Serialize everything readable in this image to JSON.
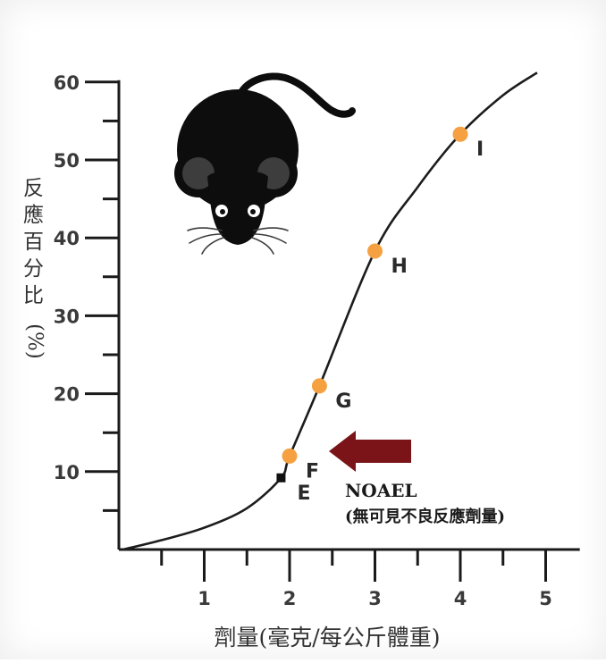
{
  "chart_data": {
    "type": "line",
    "xlabel": "劑量(毫克/每公斤體重)",
    "ylabel": "反應百分比(%)",
    "x_ticks": [
      1,
      2,
      3,
      4,
      5
    ],
    "y_ticks": [
      10,
      20,
      30,
      40,
      50,
      60
    ],
    "xlim": [
      0,
      5.4
    ],
    "ylim": [
      0,
      60
    ],
    "curve": [
      {
        "x": 0.05,
        "y": 0
      },
      {
        "x": 0.5,
        "y": 1.2
      },
      {
        "x": 1.0,
        "y": 2.8
      },
      {
        "x": 1.5,
        "y": 5.3
      },
      {
        "x": 1.9,
        "y": 9.2
      },
      {
        "x": 2.0,
        "y": 12
      },
      {
        "x": 2.35,
        "y": 21
      },
      {
        "x": 3.0,
        "y": 38.3
      },
      {
        "x": 3.5,
        "y": 46.5
      },
      {
        "x": 4.0,
        "y": 53.3
      },
      {
        "x": 4.5,
        "y": 58.3
      },
      {
        "x": 4.9,
        "y": 61.2
      }
    ],
    "points": [
      {
        "label": "E",
        "x": 1.9,
        "y": 9.2,
        "style": "square",
        "color": "#111111"
      },
      {
        "label": "F",
        "x": 2.0,
        "y": 12,
        "style": "circle",
        "color": "#f5a142"
      },
      {
        "label": "G",
        "x": 2.35,
        "y": 21,
        "style": "circle",
        "color": "#f5a142"
      },
      {
        "label": "H",
        "x": 3.0,
        "y": 38.3,
        "style": "circle",
        "color": "#f5a142"
      },
      {
        "label": "I",
        "x": 4.0,
        "y": 53.3,
        "style": "circle",
        "color": "#f5a142"
      }
    ],
    "annotation": {
      "title": "NOAEL",
      "subtitle": "(無可見不良反應劑量)",
      "points_to": "F",
      "arrow_color": "#7a1418"
    },
    "illustration": "mouse-icon"
  }
}
